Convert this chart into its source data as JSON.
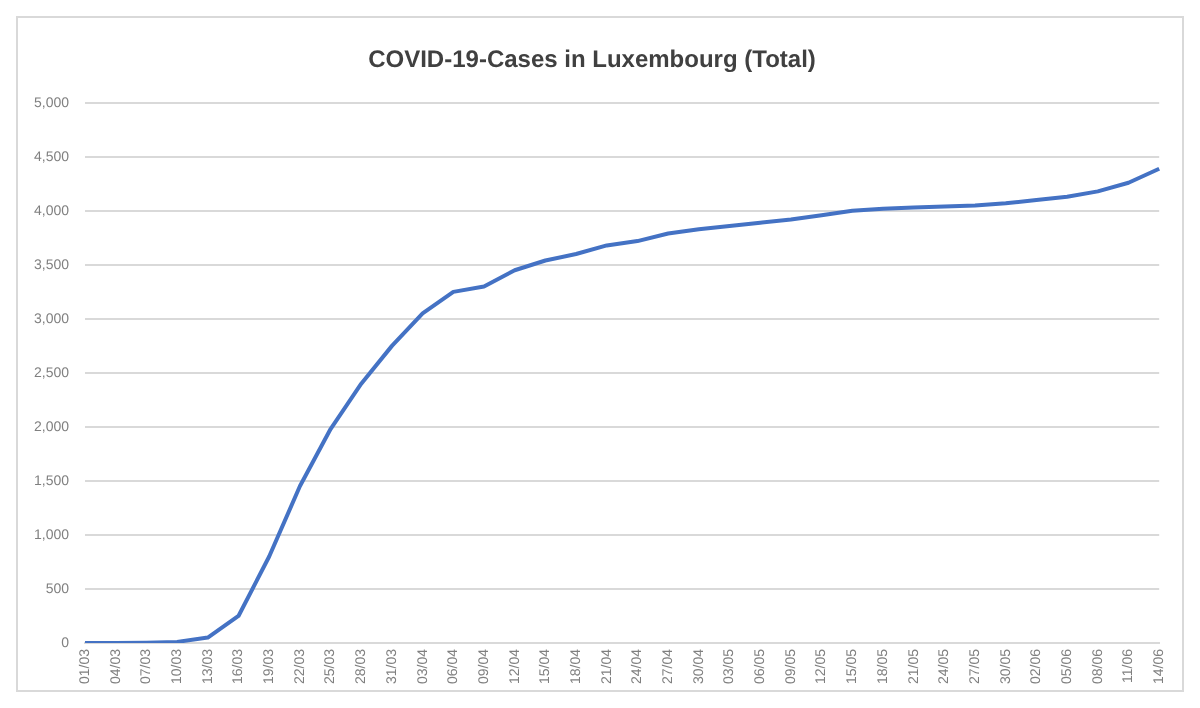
{
  "chart_data": {
    "type": "line",
    "title": "COVID-19-Cases in Luxembourg (Total)",
    "categories": [
      "01/03",
      "04/03",
      "07/03",
      "10/03",
      "13/03",
      "16/03",
      "19/03",
      "22/03",
      "25/03",
      "28/03",
      "31/03",
      "03/04",
      "06/04",
      "09/04",
      "12/04",
      "15/04",
      "18/04",
      "21/04",
      "24/04",
      "27/04",
      "30/04",
      "03/05",
      "06/05",
      "09/05",
      "12/05",
      "15/05",
      "18/05",
      "21/05",
      "24/05",
      "27/05",
      "30/05",
      "02/06",
      "05/06",
      "08/06",
      "11/06",
      "14/06"
    ],
    "series": [
      {
        "color": "#4472c4",
        "values": [
          0,
          0,
          2,
          10,
          50,
          250,
          800,
          1450,
          1980,
          2400,
          2750,
          3050,
          3250,
          3300,
          3450,
          3540,
          3600,
          3680,
          3720,
          3790,
          3830,
          3860,
          3890,
          3920,
          3960,
          4000,
          4020,
          4030,
          4040,
          4050,
          4070,
          4100,
          4130,
          4180,
          4260,
          4390
        ]
      }
    ],
    "ylim": [
      0,
      5000
    ],
    "yticks": [
      0,
      500,
      {
        "value": 1000,
        "label": "1,000"
      },
      {
        "value": 1500,
        "label": "1,500"
      },
      {
        "value": 2000,
        "label": "2,000"
      },
      {
        "value": 2500,
        "label": "2,500"
      },
      {
        "value": 3000,
        "label": "3,000"
      },
      {
        "value": 3500,
        "label": "3,500"
      },
      {
        "value": 4000,
        "label": "4,000"
      },
      {
        "value": 4500,
        "label": "4,500"
      },
      {
        "value": 5000,
        "label": "5,000"
      }
    ],
    "grid": "y",
    "legend": false,
    "marker": "none",
    "line_style": "solid"
  }
}
